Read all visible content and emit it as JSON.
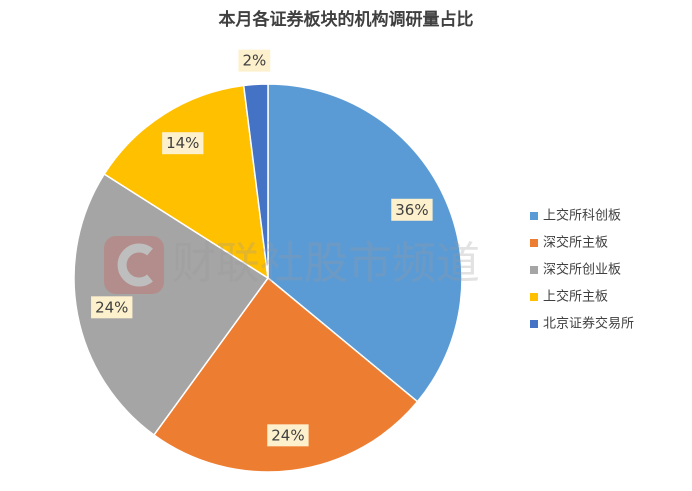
{
  "chart_data": {
    "type": "pie",
    "title": "本月各证券板块的机构调研量占比",
    "categories": [
      "上交所科创板",
      "深交所主板",
      "深交所创业板",
      "上交所主板",
      "北京证券交易所"
    ],
    "values": [
      36,
      24,
      24,
      14,
      2
    ],
    "value_labels": [
      "36%",
      "24%",
      "24%",
      "14%",
      "2%"
    ],
    "colors": [
      "#5b9bd5",
      "#ed7d31",
      "#a5a5a5",
      "#ffc000",
      "#4472c4"
    ],
    "legend": "right"
  },
  "watermark": "财联社股市频道"
}
